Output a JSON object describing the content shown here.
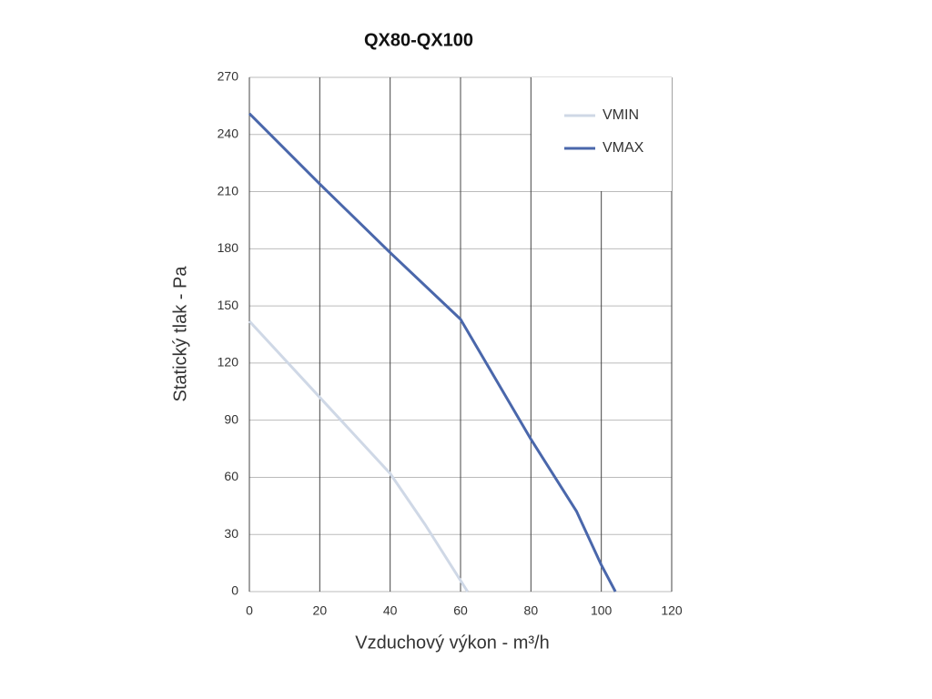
{
  "chart_data": {
    "type": "line",
    "title": "QX80-QX100",
    "xlabel": "Vzduchový výkon - m³/h",
    "ylabel": "Statický tlak - Pa",
    "series": [
      {
        "name": "VMIN",
        "color": "#cfd8e6",
        "x": [
          0,
          20,
          40,
          50,
          62
        ],
        "values": [
          142,
          102,
          62,
          35,
          0
        ]
      },
      {
        "name": "VMAX",
        "color": "#4a67ab",
        "x": [
          0,
          20,
          40,
          60,
          80,
          93,
          100,
          104
        ],
        "values": [
          251,
          214,
          178,
          143,
          80,
          42,
          14,
          0
        ]
      }
    ],
    "xlim": [
      0,
      120
    ],
    "xticks": [
      0,
      20,
      40,
      60,
      80,
      100,
      120
    ],
    "ylim": [
      0,
      270
    ],
    "yticks": [
      0,
      30,
      60,
      90,
      120,
      150,
      180,
      210,
      240,
      270
    ],
    "grid": true,
    "legend": "upper right"
  }
}
